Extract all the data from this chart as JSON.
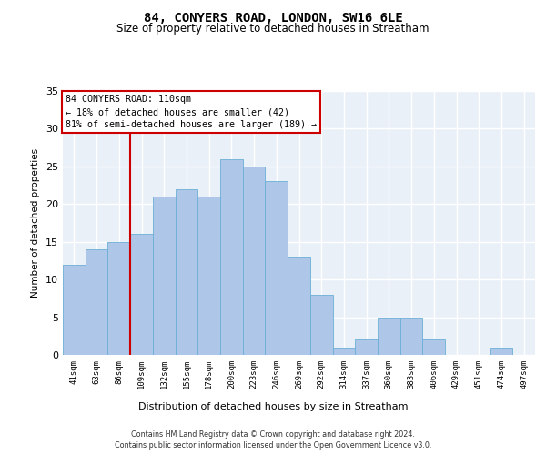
{
  "title": "84, CONYERS ROAD, LONDON, SW16 6LE",
  "subtitle": "Size of property relative to detached houses in Streatham",
  "xlabel": "Distribution of detached houses by size in Streatham",
  "ylabel": "Number of detached properties",
  "categories": [
    "41sqm",
    "63sqm",
    "86sqm",
    "109sqm",
    "132sqm",
    "155sqm",
    "178sqm",
    "200sqm",
    "223sqm",
    "246sqm",
    "269sqm",
    "292sqm",
    "314sqm",
    "337sqm",
    "360sqm",
    "383sqm",
    "406sqm",
    "429sqm",
    "451sqm",
    "474sqm",
    "497sqm"
  ],
  "values": [
    12,
    14,
    15,
    16,
    21,
    22,
    21,
    26,
    25,
    23,
    13,
    8,
    1,
    2,
    5,
    5,
    2,
    0,
    0,
    1,
    0
  ],
  "bar_color": "#aec6e8",
  "bar_edge_color": "#6baed6",
  "bg_color": "#eaf0f8",
  "grid_color": "#ffffff",
  "annotation_line_color": "#cc0000",
  "annotation_box_text": "84 CONYERS ROAD: 110sqm\n← 18% of detached houses are smaller (42)\n81% of semi-detached houses are larger (189) →",
  "ylim": [
    0,
    35
  ],
  "yticks": [
    0,
    5,
    10,
    15,
    20,
    25,
    30,
    35
  ],
  "footer_line1": "Contains HM Land Registry data © Crown copyright and database right 2024.",
  "footer_line2": "Contains public sector information licensed under the Open Government Licence v3.0."
}
